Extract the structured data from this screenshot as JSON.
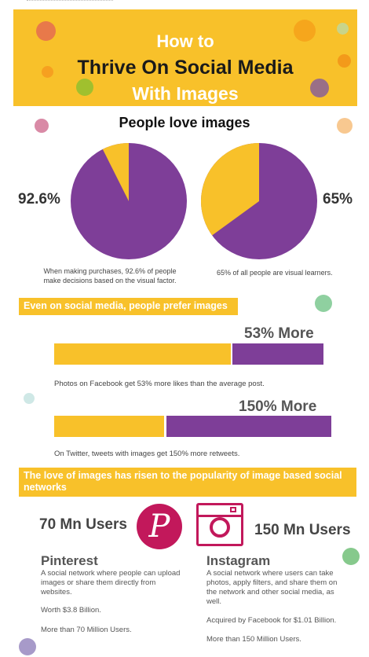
{
  "header": {
    "line1": "How to",
    "line2": "Thrive On Social Media",
    "line3": "With Images"
  },
  "section_love": {
    "title": "People love images",
    "left": {
      "percent": "92.6%",
      "caption_line1": "When making purchases, 92.6% of people",
      "caption_line2": "make decisions based on the visual factor.",
      "value": 92.6
    },
    "right": {
      "percent": "65%",
      "caption": "65% of all people are visual learners.",
      "value": 65
    }
  },
  "section_prefer": {
    "banner": "Even on social media, people prefer images",
    "facebook": {
      "label": "53% More",
      "caption": "Photos on Facebook get 53% more likes than the average post."
    },
    "twitter": {
      "label": "150% More",
      "caption": "On Twitter, tweets with images get 150% more retweets."
    }
  },
  "section_rise": {
    "banner_line1": "The love of images has risen to the popularity of image based social",
    "banner_line2": "networks"
  },
  "pinterest": {
    "users": "70 Mn Users",
    "logo_letter": "P",
    "name": "Pinterest",
    "desc_line1": "A social network where people can upload",
    "desc_line2": "images or share them directly from",
    "desc_line3": "websites.",
    "worth": "Worth $3.8 Billion.",
    "count": "More than 70 Million Users."
  },
  "instagram": {
    "users": "150 Mn Users",
    "name": "Instagram",
    "desc_line1": "A social network where users can take",
    "desc_line2": "photos, apply filters, and share them on",
    "desc_line3": "the network and other social media, as",
    "desc_line4": "well.",
    "acquired": "Acquired by Facebook for $1.01 Billion.",
    "count": "More than 150 Million Users."
  },
  "colors": {
    "yellow": "#f8c12a",
    "purple": "#7e3e98",
    "pinterest_red": "#c2185b"
  }
}
